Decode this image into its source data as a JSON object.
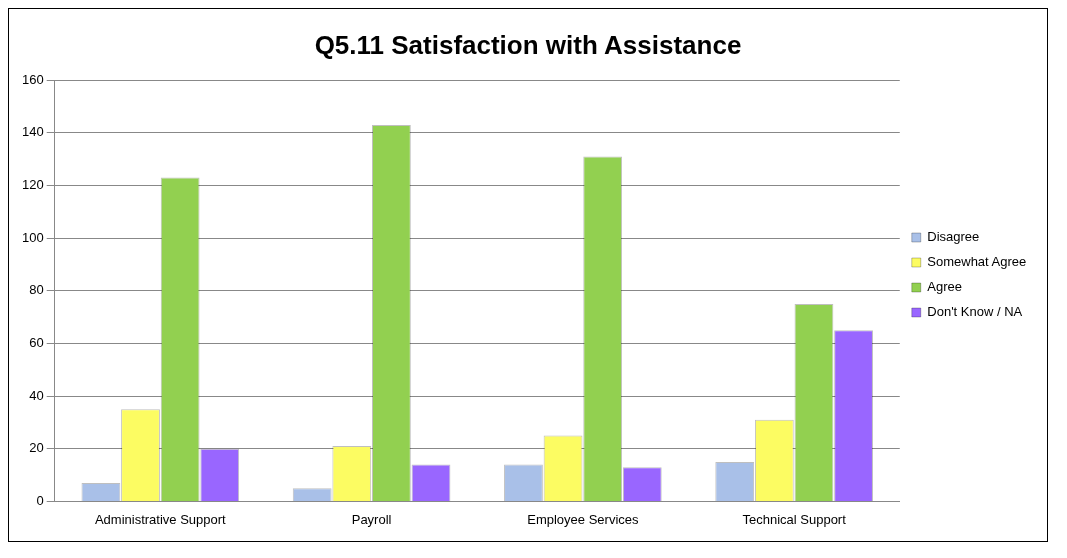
{
  "chart_data": {
    "type": "bar",
    "title": "Q5.11 Satisfaction with Assistance",
    "categories": [
      "Administrative Support",
      "Payroll",
      "Employee Services",
      "Technical Support"
    ],
    "series": [
      {
        "name": "Disagree",
        "color": "#a9c0e8",
        "values": [
          7,
          5,
          14,
          15
        ]
      },
      {
        "name": "Somewhat Agree",
        "color": "#fcfc62",
        "values": [
          35,
          21,
          25,
          31
        ]
      },
      {
        "name": "Agree",
        "color": "#92d050",
        "values": [
          123,
          143,
          131,
          75
        ]
      },
      {
        "name": "Don't Know / NA",
        "color": "#9966ff",
        "values": [
          20,
          14,
          13,
          65
        ]
      }
    ],
    "ylim": [
      0,
      160
    ],
    "yticks": [
      0,
      20,
      40,
      60,
      80,
      100,
      120,
      140,
      160
    ],
    "grid": "y",
    "legend": "right"
  }
}
